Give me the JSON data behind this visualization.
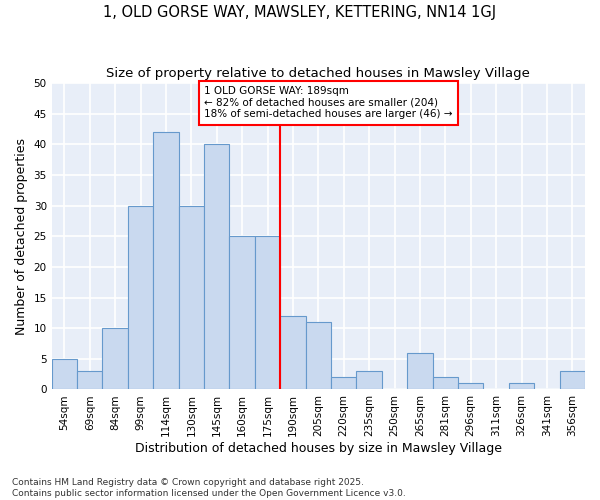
{
  "title1": "1, OLD GORSE WAY, MAWSLEY, KETTERING, NN14 1GJ",
  "title2": "Size of property relative to detached houses in Mawsley Village",
  "xlabel": "Distribution of detached houses by size in Mawsley Village",
  "ylabel": "Number of detached properties",
  "categories": [
    "54sqm",
    "69sqm",
    "84sqm",
    "99sqm",
    "114sqm",
    "130sqm",
    "145sqm",
    "160sqm",
    "175sqm",
    "190sqm",
    "205sqm",
    "220sqm",
    "235sqm",
    "250sqm",
    "265sqm",
    "281sqm",
    "296sqm",
    "311sqm",
    "326sqm",
    "341sqm",
    "356sqm"
  ],
  "values": [
    5,
    3,
    10,
    30,
    42,
    30,
    40,
    25,
    25,
    12,
    11,
    2,
    3,
    0,
    6,
    2,
    1,
    0,
    1,
    0,
    3
  ],
  "bar_color": "#c9d9ef",
  "bar_edge_color": "#6699cc",
  "ref_line_index": 9,
  "annotation_title": "1 OLD GORSE WAY: 189sqm",
  "annotation_line1": "← 82% of detached houses are smaller (204)",
  "annotation_line2": "18% of semi-detached houses are larger (46) →",
  "plot_bg_color": "#e8eef8",
  "fig_bg_color": "#ffffff",
  "grid_color": "#ffffff",
  "ylim": [
    0,
    50
  ],
  "yticks": [
    0,
    5,
    10,
    15,
    20,
    25,
    30,
    35,
    40,
    45,
    50
  ],
  "footer1": "Contains HM Land Registry data © Crown copyright and database right 2025.",
  "footer2": "Contains public sector information licensed under the Open Government Licence v3.0.",
  "title_fontsize": 10.5,
  "subtitle_fontsize": 9.5,
  "axis_label_fontsize": 9,
  "tick_fontsize": 7.5,
  "footer_fontsize": 6.5
}
